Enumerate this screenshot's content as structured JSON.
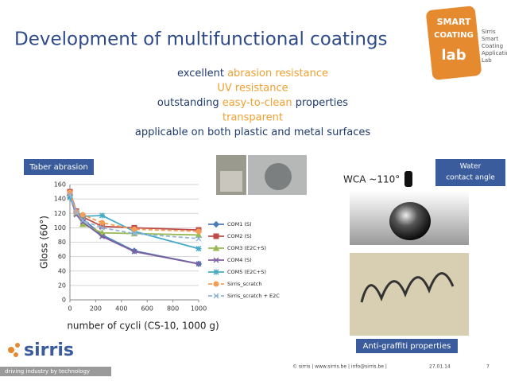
{
  "header": {
    "title": "Development of multifunctional coatings"
  },
  "logo": {
    "lines": [
      "SMART",
      "COATING",
      "lab"
    ],
    "caption": [
      "Sirris",
      "Smart",
      "Coating",
      "Application",
      "Lab"
    ]
  },
  "highlight_color": "#f0a030",
  "bullets": [
    [
      {
        "text": "excellent "
      },
      {
        "text": "abrasion resistance",
        "highlight": true
      }
    ],
    [
      {
        "text": "UV resistance",
        "highlight": true
      }
    ],
    [
      {
        "text": "outstanding "
      },
      {
        "text": "easy-to-clean",
        "highlight": true
      },
      {
        "text": " properties"
      }
    ],
    [
      {
        "text": "transparent",
        "highlight": true
      }
    ],
    [
      {
        "text": "applicable on both plastic and metal surfaces"
      }
    ]
  ],
  "labels": {
    "taber": "Taber abrasion",
    "wca": "WCA ~110°",
    "water": [
      "Water",
      "contact angle"
    ],
    "graffiti": "Anti-graffiti properties"
  },
  "chart_data": {
    "type": "line",
    "x_label": "number of cycli (CS-10, 1000 g)",
    "y_label": "Gloss (60°)",
    "x": [
      0,
      50,
      100,
      250,
      500,
      1000
    ],
    "xlim": [
      0,
      1000
    ],
    "xticks": [
      0,
      200,
      400,
      600,
      800,
      1000
    ],
    "ylim": [
      0,
      160
    ],
    "yticks": [
      0,
      20,
      40,
      60,
      80,
      100,
      120,
      140,
      160
    ],
    "grid": true,
    "series": [
      {
        "name": "COM1 (S)",
        "color": "#4a7ebb",
        "marker": "diamond",
        "values": [
          145,
          122,
          112,
          90,
          68,
          50
        ]
      },
      {
        "name": "COM2 (S)",
        "color": "#be4b48",
        "marker": "square",
        "values": [
          150,
          123,
          115,
          102,
          100,
          97
        ]
      },
      {
        "name": "COM3 (E2C+S)",
        "color": "#98b954",
        "marker": "triangle",
        "values": [
          148,
          120,
          105,
          93,
          92,
          90
        ]
      },
      {
        "name": "COM4 (S)",
        "color": "#7d60a0",
        "marker": "cross",
        "values": [
          143,
          118,
          108,
          88,
          67,
          50
        ]
      },
      {
        "name": "COM5 (E2C+S)",
        "color": "#46aac5",
        "marker": "star",
        "values": [
          142,
          122,
          116,
          117,
          95,
          71
        ]
      },
      {
        "name": "Sirris_scratch",
        "color": "#f59d56",
        "marker": "circle",
        "dashed": true,
        "values": [
          149,
          122,
          118,
          107,
          98,
          95
        ]
      },
      {
        "name": "Sirris_scratch + E2C",
        "color": "#93b4da",
        "marker": "cross",
        "dashed": true,
        "values": [
          146,
          121,
          110,
          100,
          92,
          85
        ]
      }
    ]
  },
  "footer": {
    "brand": "sirris",
    "tagline": "driving industry by technology",
    "contact": "© sirris | www.sirris.be | info@sirris.be |",
    "date": "27.01.14",
    "page": "7"
  }
}
